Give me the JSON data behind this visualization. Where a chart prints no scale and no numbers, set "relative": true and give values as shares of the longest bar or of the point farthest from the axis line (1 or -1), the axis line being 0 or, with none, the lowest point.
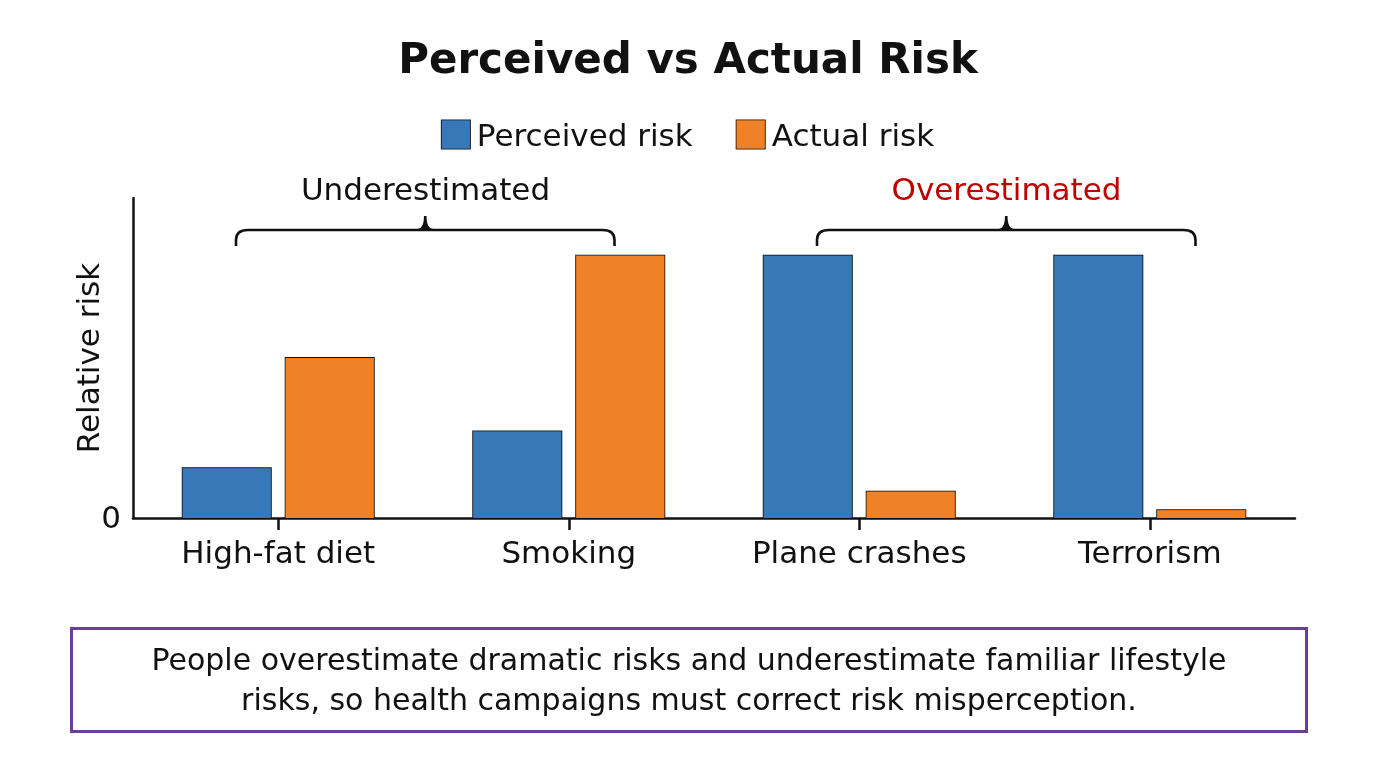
{
  "chart_data": {
    "type": "bar",
    "title": "Perceived vs Actual Risk",
    "ylabel": "Relative risk",
    "relative": true,
    "categories": [
      "High-fat diet",
      "Smoking",
      "Plane crashes",
      "Terrorism"
    ],
    "series": [
      {
        "name": "Perceived risk",
        "color": "#3878b8",
        "values": [
          0.19,
          0.33,
          1,
          1
        ]
      },
      {
        "name": "Actual risk",
        "color": "#ef8228",
        "values": [
          0.61,
          1,
          0.1,
          0.03
        ]
      }
    ],
    "legend": "top",
    "grid": false,
    "annotations": [
      "0",
      "Underestimated",
      "Overestimated",
      "People overestimate dramatic risks and underestimate familiar lifestyle risks, so health campaigns must correct risk misperception."
    ]
  }
}
